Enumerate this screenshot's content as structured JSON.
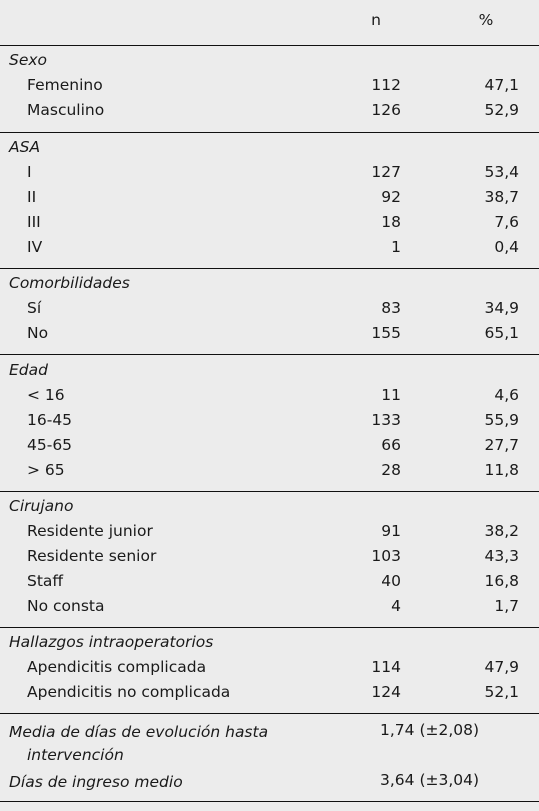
{
  "header": {
    "n_label": "n",
    "pct_label": "%"
  },
  "sections": [
    {
      "title": "Sexo",
      "rows": [
        {
          "label": "Femenino",
          "n": "112",
          "pct": "47,1"
        },
        {
          "label": "Masculino",
          "n": "126",
          "pct": "52,9"
        }
      ]
    },
    {
      "title": "ASA",
      "rows": [
        {
          "label": "I",
          "n": "127",
          "pct": "53,4"
        },
        {
          "label": "II",
          "n": "92",
          "pct": "38,7"
        },
        {
          "label": "III",
          "n": "18",
          "pct": "7,6"
        },
        {
          "label": "IV",
          "n": "1",
          "pct": "0,4"
        }
      ]
    },
    {
      "title": "Comorbilidades",
      "rows": [
        {
          "label": "Sí",
          "n": "83",
          "pct": "34,9"
        },
        {
          "label": "No",
          "n": "155",
          "pct": "65,1"
        }
      ]
    },
    {
      "title": "Edad",
      "rows": [
        {
          "label": "< 16",
          "n": "11",
          "pct": "4,6"
        },
        {
          "label": "16-45",
          "n": "133",
          "pct": "55,9"
        },
        {
          "label": "45-65",
          "n": "66",
          "pct": "27,7"
        },
        {
          "label": "> 65",
          "n": "28",
          "pct": "11,8"
        }
      ]
    },
    {
      "title": "Cirujano",
      "rows": [
        {
          "label": "Residente junior",
          "n": "91",
          "pct": "38,2"
        },
        {
          "label": "Residente senior",
          "n": "103",
          "pct": "43,3"
        },
        {
          "label": "Staff",
          "n": "40",
          "pct": "16,8"
        },
        {
          "label": "No consta",
          "n": "4",
          "pct": "1,7"
        }
      ]
    },
    {
      "title": "Hallazgos intraoperatorios",
      "rows": [
        {
          "label": "Apendicitis complicada",
          "n": "114",
          "pct": "47,9"
        },
        {
          "label": "Apendicitis no complicada",
          "n": "124",
          "pct": "52,1"
        }
      ]
    }
  ],
  "footer": [
    {
      "label_line1": "Media de días de evolución hasta",
      "label_line2": "intervención",
      "value": "1,74 (±2,08)"
    },
    {
      "label_line1": "Días de ingreso medio",
      "label_line2": "",
      "value": "3,64 (±3,04)"
    }
  ]
}
